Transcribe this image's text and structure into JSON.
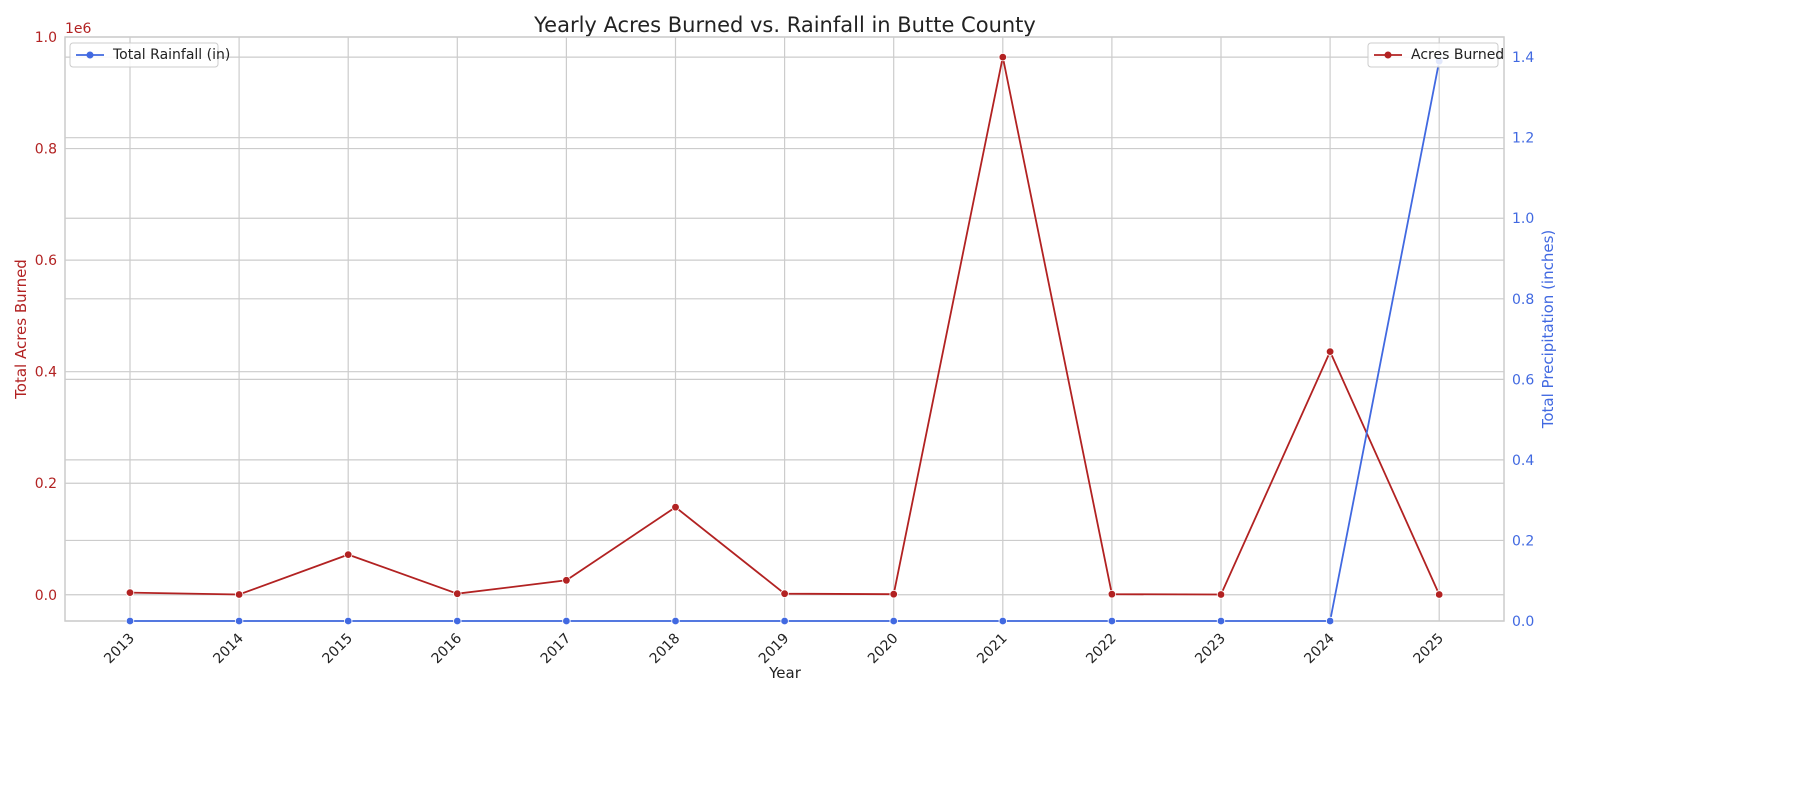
{
  "chart_data": {
    "type": "line",
    "title": "Yearly Acres Burned vs. Rainfall in Butte County",
    "xlabel": "Year",
    "categories": [
      "2013",
      "2014",
      "2015",
      "2016",
      "2017",
      "2018",
      "2019",
      "2020",
      "2021",
      "2022",
      "2023",
      "2024",
      "2025"
    ],
    "y_left": {
      "label": "Total Acres Burned",
      "offset_label": "1e6",
      "ticks": [
        "0.0",
        "0.2",
        "0.4",
        "0.6",
        "0.8",
        "1.0"
      ],
      "ylim": [
        -0.047,
        1.0
      ],
      "color": "#b22222"
    },
    "y_right": {
      "label": "Total Precipitation (inches)",
      "ticks": [
        "0.0",
        "0.2",
        "0.4",
        "0.6",
        "0.8",
        "1.0",
        "1.2",
        "1.4"
      ],
      "ylim": [
        0.0,
        1.45
      ],
      "color": "#4169e1"
    },
    "series": [
      {
        "name": "Acres Burned",
        "axis": "left",
        "color": "#b22222",
        "values": [
          0.004,
          0.0005,
          0.072,
          0.002,
          0.026,
          0.157,
          0.002,
          0.001,
          0.964,
          0.001,
          0.0005,
          0.436,
          0.0005
        ]
      },
      {
        "name": "Total Rainfall (in)",
        "axis": "right",
        "color": "#4169e1",
        "values": [
          0,
          0,
          0,
          0,
          0,
          0,
          0,
          0,
          0,
          0,
          0,
          0,
          1.39
        ]
      }
    ],
    "legends": {
      "left_series": "Acres Burned",
      "right_series": "Total Rainfall (in)"
    },
    "grid": true
  }
}
